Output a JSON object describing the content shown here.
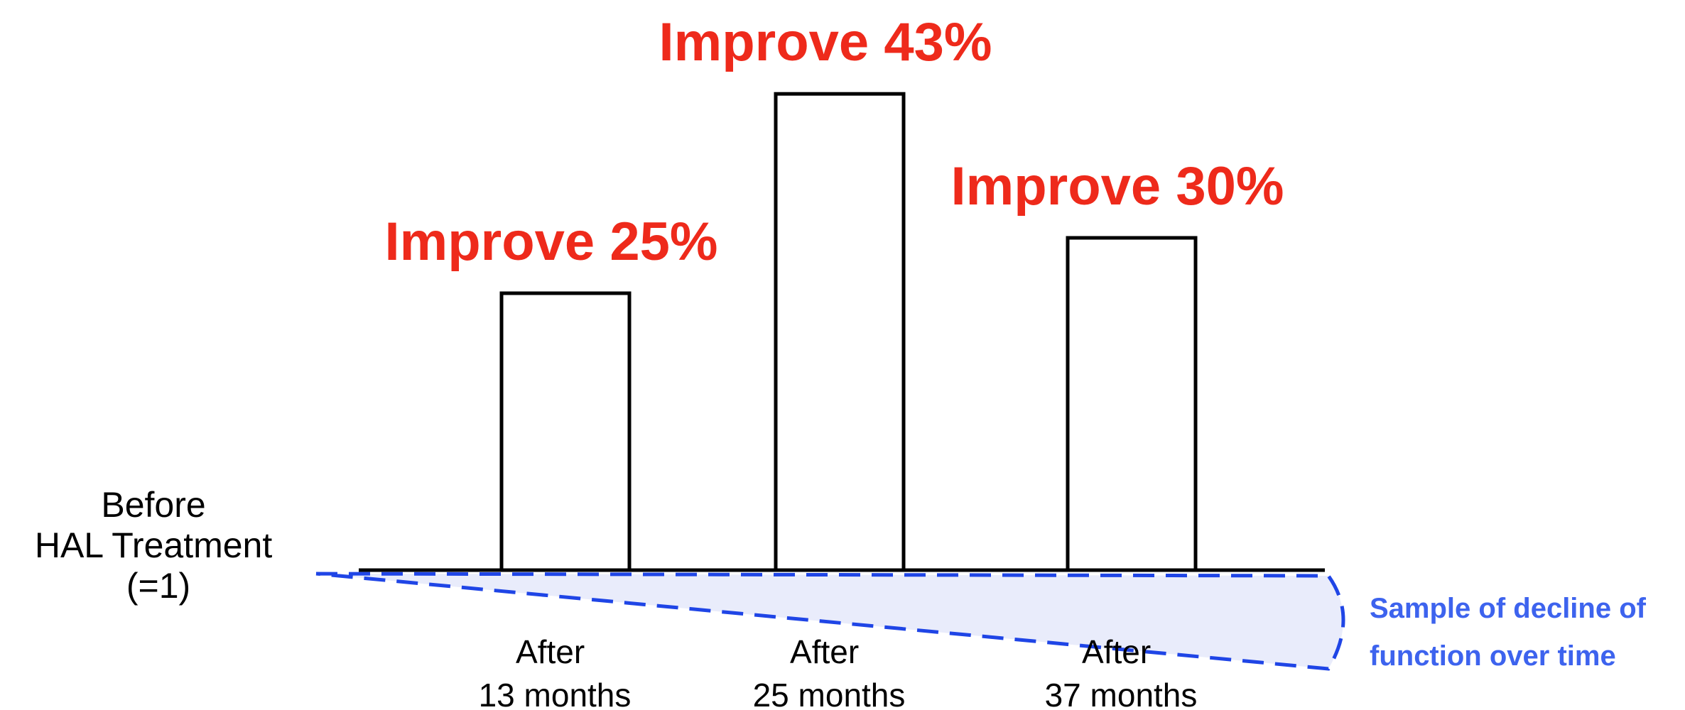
{
  "chart_data": {
    "type": "bar",
    "baseline_label": [
      "Before",
      "HAL Treatment",
      "(=1)"
    ],
    "baseline_value": 1,
    "categories": [
      [
        "After",
        "13 months"
      ],
      [
        "After",
        "25 months"
      ],
      [
        "After",
        "37 months"
      ]
    ],
    "values": [
      1.25,
      1.43,
      1.3
    ],
    "bar_labels": [
      "Improve 25%",
      "Improve 43%",
      "Improve 30%"
    ],
    "decline_annotation": [
      "Sample of decline of",
      "function over time"
    ],
    "grid": false,
    "legend": "none",
    "colors": {
      "bar_fill": "#ffffff",
      "bar_stroke": "#000000",
      "bar_label": "#ee2a1b",
      "decline_line": "#1f45e6",
      "decline_fill": "#e9ecfb",
      "decline_text": "#3d63ee"
    }
  }
}
